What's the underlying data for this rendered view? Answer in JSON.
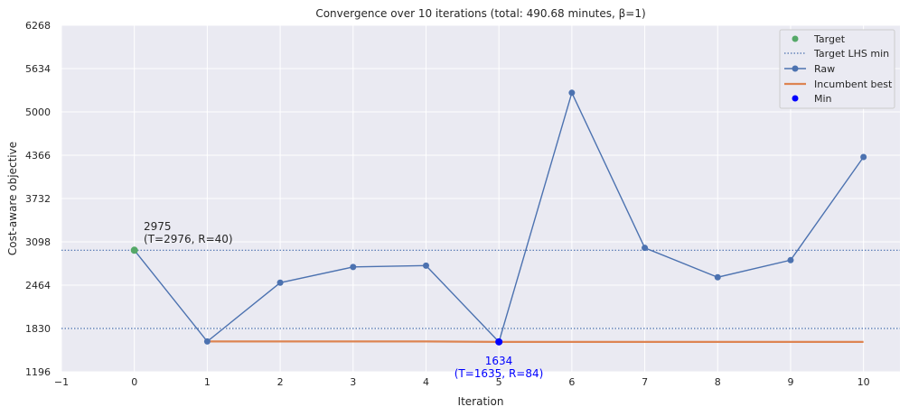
{
  "chart_data": {
    "type": "line",
    "title": "Convergence over 10 iterations (total: 490.68 minutes, β=1)",
    "xlabel": "Iteration",
    "ylabel": "Cost-aware objective",
    "xlim": [
      -1,
      10.5
    ],
    "ylim": [
      1196,
      6268
    ],
    "xticks": [
      "−1",
      "0",
      "1",
      "2",
      "3",
      "4",
      "5",
      "6",
      "7",
      "8",
      "9",
      "10"
    ],
    "yticks": [
      "1196",
      "1830",
      "2464",
      "3098",
      "3732",
      "4366",
      "5000",
      "5634",
      "6268"
    ],
    "grid": true,
    "legend_position": "top-right",
    "legend": [
      "Target",
      "Target LHS min",
      "Raw",
      "Incumbent best",
      "Min"
    ],
    "target": {
      "x": 0,
      "y": 2975
    },
    "target_lhs_min": [
      2975,
      1830
    ],
    "raw": {
      "x": [
        0,
        1,
        2,
        3,
        4,
        5,
        6,
        7,
        8,
        9,
        10
      ],
      "y": [
        2975,
        1640,
        2500,
        2730,
        2750,
        1634,
        5280,
        3010,
        2580,
        2830,
        4340
      ]
    },
    "incumbent_best": {
      "x": [
        1,
        2,
        3,
        4,
        5,
        6,
        7,
        8,
        9,
        10
      ],
      "y": [
        1640,
        1640,
        1640,
        1640,
        1634,
        1634,
        1634,
        1634,
        1634,
        1634
      ]
    },
    "min_point": {
      "x": 5,
      "y": 1634
    },
    "annotations": {
      "target_value": "2975",
      "target_detail": "(T=2976, R=40)",
      "min_value": "1634",
      "min_detail": "(T=1635, R=84)"
    },
    "colors": {
      "target": "#55a868",
      "raw": "#4c72b0",
      "incumbent": "#dd8452",
      "min": "#0000ff",
      "lhs_line": "#4c72b0",
      "plot_bg": "#eaeaf2",
      "grid": "#ffffff"
    }
  }
}
